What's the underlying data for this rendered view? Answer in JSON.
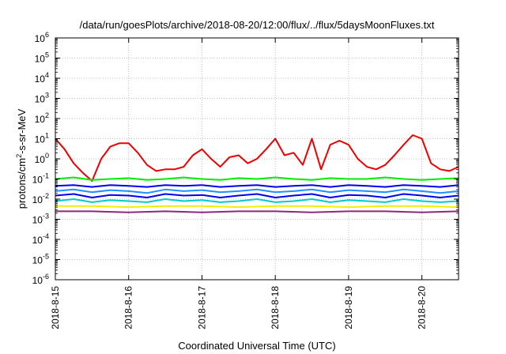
{
  "chart_data": {
    "type": "line",
    "title": "/data/run/goesPlots/archive/2018-08-20/12:00/flux/../flux/5daysMoonFluxes.txt",
    "xlabel": "Coordinated Universal Time (UTC)",
    "ylabel": {
      "prefix": "protons/cm",
      "sup": "2",
      "suffix": "-s-sr-MeV"
    },
    "x_range": [
      "2018-08-15",
      "2018-08-20T12:00"
    ],
    "x_ticks": [
      "2018-8-15",
      "2018-8-16",
      "2018-8-17",
      "2018-8-18",
      "2018-8-19",
      "2018-8-20"
    ],
    "y_scale": "log",
    "ylim": [
      1e-06,
      1000000.0
    ],
    "y_tick_base": "10",
    "y_tick_exponents": [
      "-6",
      "-5",
      "-4",
      "-3",
      "-2",
      "-1",
      "0",
      "1",
      "2",
      "3",
      "4",
      "5",
      "6"
    ],
    "grid": true,
    "colors": {
      "red": "#ee0000",
      "green": "#00ee00",
      "blue": "#0000ee",
      "dodgerblue": "#1e90ff",
      "cyan": "#00cccc",
      "yellow": "#f0f000",
      "purple": "#8b2a7b"
    },
    "series": [
      {
        "color": "red",
        "x": [
          "2018-08-15T00:00",
          "2018-08-15T03:00",
          "2018-08-15T06:00",
          "2018-08-15T09:00",
          "2018-08-15T12:00",
          "2018-08-15T15:00",
          "2018-08-15T18:00",
          "2018-08-15T21:00",
          "2018-08-16T00:00",
          "2018-08-16T03:00",
          "2018-08-16T06:00",
          "2018-08-16T09:00",
          "2018-08-16T12:00",
          "2018-08-16T15:00",
          "2018-08-16T18:00",
          "2018-08-16T21:00",
          "2018-08-17T00:00",
          "2018-08-17T03:00",
          "2018-08-17T06:00",
          "2018-08-17T09:00",
          "2018-08-17T12:00",
          "2018-08-17T15:00",
          "2018-08-17T18:00",
          "2018-08-17T21:00",
          "2018-08-18T00:00",
          "2018-08-18T03:00",
          "2018-08-18T06:00",
          "2018-08-18T09:00",
          "2018-08-18T12:00",
          "2018-08-18T15:00",
          "2018-08-18T18:00",
          "2018-08-18T21:00",
          "2018-08-19T00:00",
          "2018-08-19T03:00",
          "2018-08-19T06:00",
          "2018-08-19T09:00",
          "2018-08-19T12:00",
          "2018-08-19T15:00",
          "2018-08-19T18:00",
          "2018-08-19T21:00",
          "2018-08-20T00:00",
          "2018-08-20T03:00",
          "2018-08-20T06:00",
          "2018-08-20T09:00",
          "2018-08-20T12:00"
        ],
        "y": [
          10,
          3,
          0.6,
          0.2,
          0.08,
          1,
          4,
          6,
          6,
          2,
          0.5,
          0.25,
          0.3,
          0.3,
          0.4,
          1.5,
          3,
          1,
          0.4,
          1.2,
          1.5,
          0.6,
          1,
          3,
          10,
          1.5,
          2,
          0.5,
          10,
          0.3,
          5,
          8,
          5,
          1,
          0.4,
          0.3,
          0.5,
          1.5,
          5,
          15,
          10,
          0.6,
          0.3,
          0.25,
          0.4
        ]
      },
      {
        "color": "green",
        "x": [
          "2018-08-15T00:00",
          "2018-08-15T06:00",
          "2018-08-15T12:00",
          "2018-08-15T18:00",
          "2018-08-16T00:00",
          "2018-08-16T06:00",
          "2018-08-16T12:00",
          "2018-08-16T18:00",
          "2018-08-17T00:00",
          "2018-08-17T06:00",
          "2018-08-17T12:00",
          "2018-08-17T18:00",
          "2018-08-18T00:00",
          "2018-08-18T06:00",
          "2018-08-18T12:00",
          "2018-08-18T18:00",
          "2018-08-19T00:00",
          "2018-08-19T06:00",
          "2018-08-19T12:00",
          "2018-08-19T18:00",
          "2018-08-20T00:00",
          "2018-08-20T06:00",
          "2018-08-20T12:00"
        ],
        "y": [
          0.1,
          0.12,
          0.09,
          0.1,
          0.11,
          0.09,
          0.1,
          0.12,
          0.1,
          0.09,
          0.11,
          0.1,
          0.12,
          0.1,
          0.09,
          0.11,
          0.1,
          0.1,
          0.12,
          0.1,
          0.09,
          0.1,
          0.11
        ]
      },
      {
        "color": "blue",
        "x": [
          "2018-08-15T00:00",
          "2018-08-15T06:00",
          "2018-08-15T12:00",
          "2018-08-15T18:00",
          "2018-08-16T00:00",
          "2018-08-16T06:00",
          "2018-08-16T12:00",
          "2018-08-16T18:00",
          "2018-08-17T00:00",
          "2018-08-17T06:00",
          "2018-08-17T12:00",
          "2018-08-17T18:00",
          "2018-08-18T00:00",
          "2018-08-18T06:00",
          "2018-08-18T12:00",
          "2018-08-18T18:00",
          "2018-08-19T00:00",
          "2018-08-19T06:00",
          "2018-08-19T12:00",
          "2018-08-19T18:00",
          "2018-08-20T00:00",
          "2018-08-20T06:00",
          "2018-08-20T12:00"
        ],
        "y": [
          0.045,
          0.05,
          0.04,
          0.05,
          0.045,
          0.04,
          0.05,
          0.045,
          0.05,
          0.04,
          0.045,
          0.05,
          0.04,
          0.045,
          0.05,
          0.04,
          0.05,
          0.045,
          0.04,
          0.05,
          0.045,
          0.04,
          0.05
        ]
      },
      {
        "color": "dodgerblue",
        "x": [
          "2018-08-15T00:00",
          "2018-08-15T06:00",
          "2018-08-15T12:00",
          "2018-08-15T18:00",
          "2018-08-16T00:00",
          "2018-08-16T06:00",
          "2018-08-16T12:00",
          "2018-08-16T18:00",
          "2018-08-17T00:00",
          "2018-08-17T06:00",
          "2018-08-17T12:00",
          "2018-08-17T18:00",
          "2018-08-18T00:00",
          "2018-08-18T06:00",
          "2018-08-18T12:00",
          "2018-08-18T18:00",
          "2018-08-19T00:00",
          "2018-08-19T06:00",
          "2018-08-19T12:00",
          "2018-08-19T18:00",
          "2018-08-20T00:00",
          "2018-08-20T06:00",
          "2018-08-20T12:00"
        ],
        "y": [
          0.025,
          0.03,
          0.022,
          0.028,
          0.025,
          0.02,
          0.03,
          0.025,
          0.028,
          0.022,
          0.025,
          0.03,
          0.022,
          0.025,
          0.03,
          0.022,
          0.028,
          0.025,
          0.022,
          0.03,
          0.025,
          0.02,
          0.025
        ]
      },
      {
        "color": "blue",
        "x": [
          "2018-08-15T00:00",
          "2018-08-15T06:00",
          "2018-08-15T12:00",
          "2018-08-15T18:00",
          "2018-08-16T00:00",
          "2018-08-16T06:00",
          "2018-08-16T12:00",
          "2018-08-16T18:00",
          "2018-08-17T00:00",
          "2018-08-17T06:00",
          "2018-08-17T12:00",
          "2018-08-17T18:00",
          "2018-08-18T00:00",
          "2018-08-18T06:00",
          "2018-08-18T12:00",
          "2018-08-18T18:00",
          "2018-08-19T00:00",
          "2018-08-19T06:00",
          "2018-08-19T12:00",
          "2018-08-19T18:00",
          "2018-08-20T00:00",
          "2018-08-20T06:00",
          "2018-08-20T12:00"
        ],
        "y": [
          0.015,
          0.018,
          0.012,
          0.016,
          0.015,
          0.012,
          0.018,
          0.015,
          0.016,
          0.012,
          0.015,
          0.018,
          0.012,
          0.015,
          0.018,
          0.012,
          0.016,
          0.015,
          0.012,
          0.018,
          0.015,
          0.012,
          0.015
        ]
      },
      {
        "color": "cyan",
        "x": [
          "2018-08-15T00:00",
          "2018-08-15T06:00",
          "2018-08-15T12:00",
          "2018-08-15T18:00",
          "2018-08-16T00:00",
          "2018-08-16T06:00",
          "2018-08-16T12:00",
          "2018-08-16T18:00",
          "2018-08-17T00:00",
          "2018-08-17T06:00",
          "2018-08-17T12:00",
          "2018-08-17T18:00",
          "2018-08-18T00:00",
          "2018-08-18T06:00",
          "2018-08-18T12:00",
          "2018-08-18T18:00",
          "2018-08-19T00:00",
          "2018-08-19T06:00",
          "2018-08-19T12:00",
          "2018-08-19T18:00",
          "2018-08-20T00:00",
          "2018-08-20T06:00",
          "2018-08-20T12:00"
        ],
        "y": [
          0.008,
          0.01,
          0.007,
          0.009,
          0.008,
          0.007,
          0.01,
          0.008,
          0.009,
          0.007,
          0.008,
          0.01,
          0.007,
          0.008,
          0.01,
          0.007,
          0.009,
          0.008,
          0.007,
          0.01,
          0.008,
          0.007,
          0.008
        ]
      },
      {
        "color": "yellow",
        "x": [
          "2018-08-15T00:00",
          "2018-08-15T12:00",
          "2018-08-16T00:00",
          "2018-08-16T12:00",
          "2018-08-17T00:00",
          "2018-08-17T12:00",
          "2018-08-18T00:00",
          "2018-08-18T12:00",
          "2018-08-19T00:00",
          "2018-08-19T12:00",
          "2018-08-20T00:00",
          "2018-08-20T12:00"
        ],
        "y": [
          0.0045,
          0.0045,
          0.004,
          0.0045,
          0.0045,
          0.004,
          0.0045,
          0.0045,
          0.004,
          0.0045,
          0.0045,
          0.004
        ]
      },
      {
        "color": "purple",
        "x": [
          "2018-08-15T00:00",
          "2018-08-15T12:00",
          "2018-08-16T00:00",
          "2018-08-16T12:00",
          "2018-08-17T00:00",
          "2018-08-17T12:00",
          "2018-08-18T00:00",
          "2018-08-18T12:00",
          "2018-08-19T00:00",
          "2018-08-19T12:00",
          "2018-08-20T00:00",
          "2018-08-20T12:00"
        ],
        "y": [
          0.0025,
          0.0025,
          0.0022,
          0.0025,
          0.0022,
          0.0025,
          0.0025,
          0.0022,
          0.0025,
          0.0025,
          0.0022,
          0.0025
        ]
      }
    ]
  }
}
